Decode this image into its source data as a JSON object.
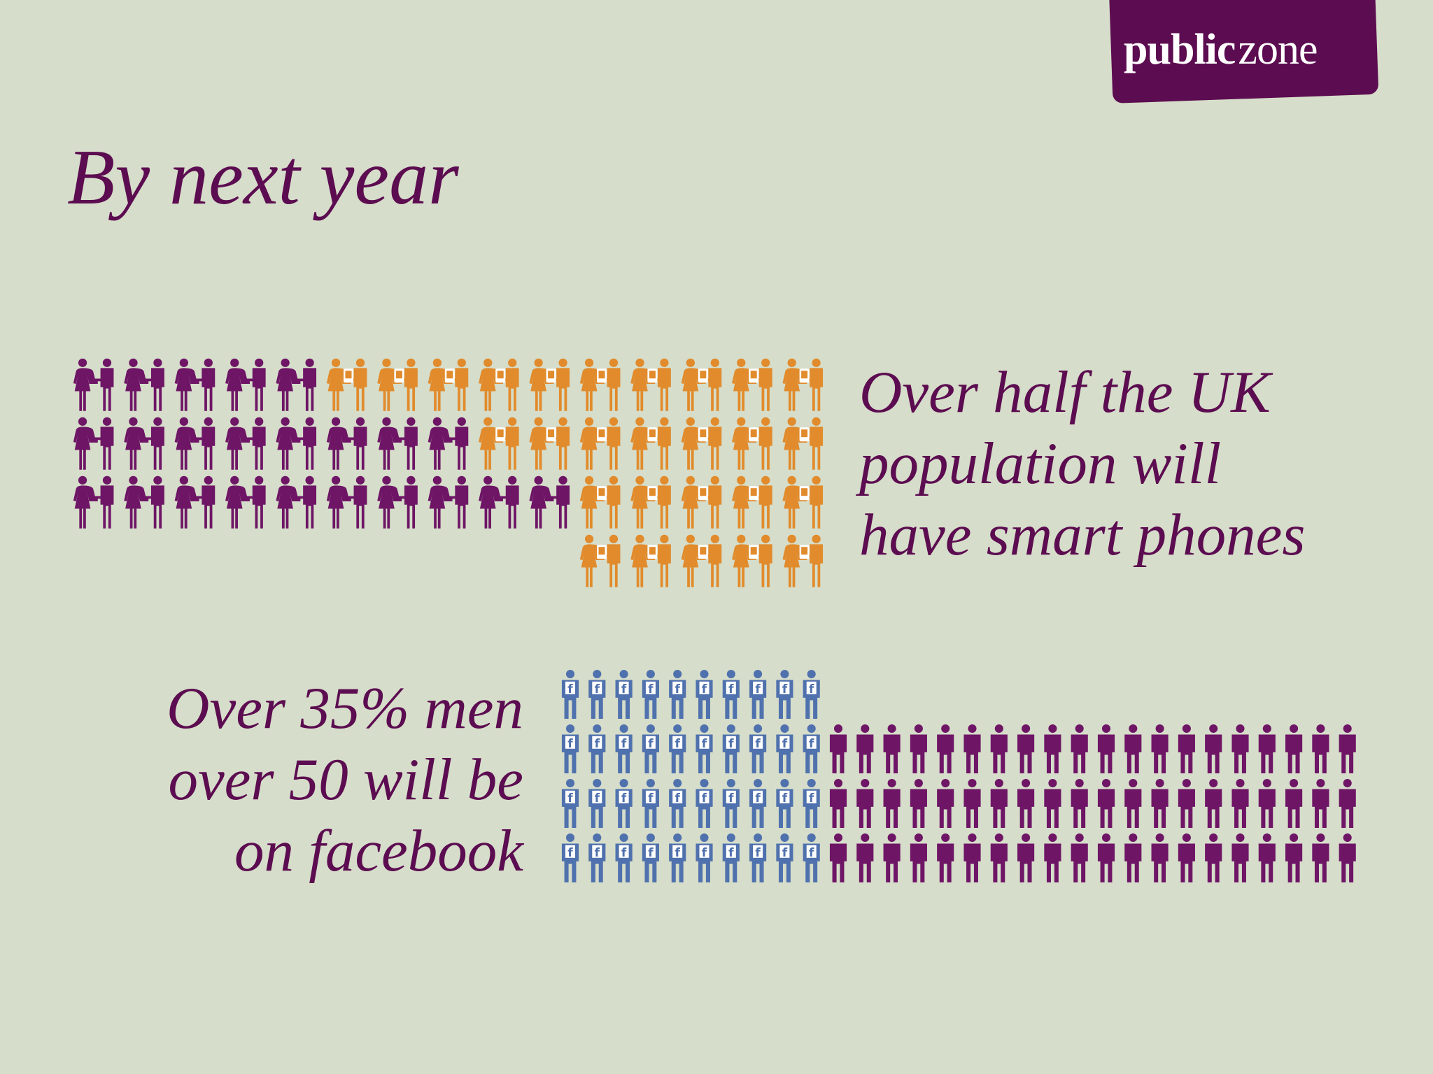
{
  "logo": {
    "part1": "public",
    "part2": "zone"
  },
  "title": "By next year",
  "stats": [
    {
      "lines": [
        "Over half the UK",
        "population will",
        "have smart phones"
      ],
      "chart": {
        "kind": "couples",
        "rows": [
          {
            "total": 15,
            "highlighted": 10
          },
          {
            "total": 15,
            "highlighted": 7
          },
          {
            "total": 15,
            "highlighted": 5
          },
          {
            "total": 5,
            "highlighted": 5
          }
        ],
        "highlight_icon": "smartphone-icon",
        "highlight_color": "#e18b2c",
        "base_color": "#6e1566"
      }
    },
    {
      "lines": [
        "Over 35% men",
        "over 50 will be",
        "on facebook"
      ],
      "chart": {
        "kind": "men",
        "rows": [
          {
            "total": 10,
            "highlighted": 10
          },
          {
            "total": 30,
            "highlighted": 10
          },
          {
            "total": 30,
            "highlighted": 10
          },
          {
            "total": 30,
            "highlighted": 10
          }
        ],
        "highlight_icon": "facebook-icon",
        "highlight_color": "#4f71ad",
        "base_color": "#6e1566"
      }
    }
  ]
}
